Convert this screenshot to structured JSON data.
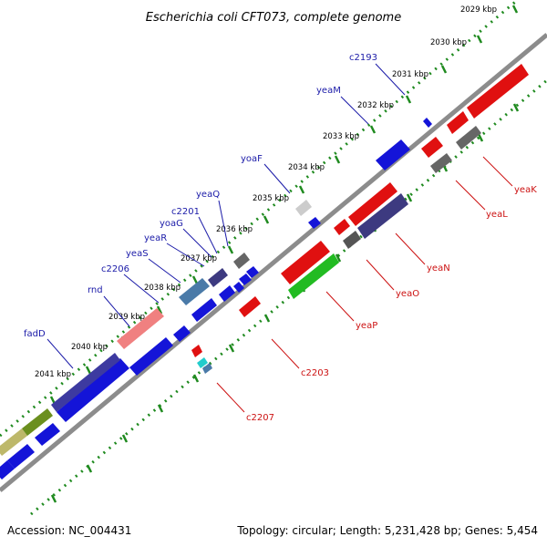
{
  "title": "Escherichia coli CFT073, complete genome",
  "footer": {
    "accession": "Accession: NC_004431",
    "summary": "Topology: circular; Length: 5,231,428 bp; Genes: 5,454"
  },
  "colors": {
    "backbone": "#8c8c8c",
    "tick": "#1f8a1f",
    "forward_label": "#1a1aa8",
    "reverse_label": "#cc1111"
  },
  "kbp_labels": [
    "2029 kbp",
    "2030 kbp",
    "2031 kbp",
    "2032 kbp",
    "2033 kbp",
    "2034 kbp",
    "2035 kbp",
    "2036 kbp",
    "2037 kbp",
    "2038 kbp",
    "2039 kbp",
    "2040 kbp",
    "2041 kbp"
  ],
  "forward_labels": [
    "c2193",
    "yeaM",
    "yoaF",
    "yeaQ",
    "c2201",
    "yoaG",
    "yeaR",
    "yeaS",
    "c2206",
    "rnd",
    "fadD"
  ],
  "reverse_labels": [
    "yeaK",
    "yeaL",
    "yeaN",
    "yeaO",
    "yeaP",
    "c2203",
    "c2207"
  ]
}
